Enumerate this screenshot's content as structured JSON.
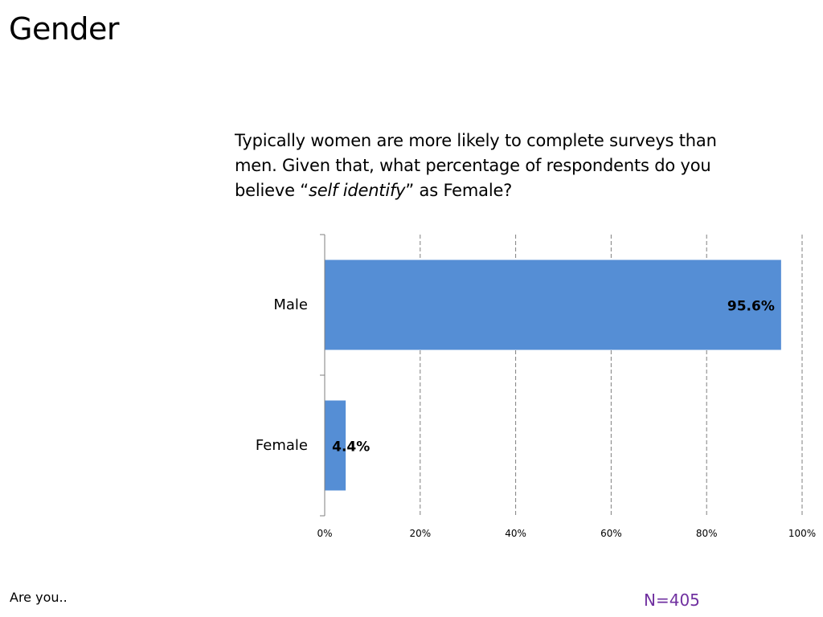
{
  "slide": {
    "title": "Gender",
    "question_part1": "Typically women are more likely to complete surveys than men.  Given that, what percentage of respondents do you believe “",
    "question_italic": "self identify",
    "question_part2": "” as Female?",
    "footer_left": "Are you..",
    "footer_right": "N=405"
  },
  "colors": {
    "bar": "#558ed5",
    "footer_right": "#7030a0",
    "gridline": "#7f7f7f",
    "axis": "#7f7f7f"
  },
  "chart_data": {
    "type": "bar",
    "orientation": "horizontal",
    "categories": [
      "Male",
      "Female"
    ],
    "values": [
      95.6,
      4.4
    ],
    "value_labels": [
      "95.6%",
      "4.4%"
    ],
    "xlim": [
      0,
      100
    ],
    "x_ticks": [
      0,
      20,
      40,
      60,
      80,
      100
    ],
    "x_tick_labels": [
      "0%",
      "20%",
      "40%",
      "60%",
      "80%",
      "100%"
    ],
    "grid": "vertical dashed",
    "legend": "none"
  }
}
